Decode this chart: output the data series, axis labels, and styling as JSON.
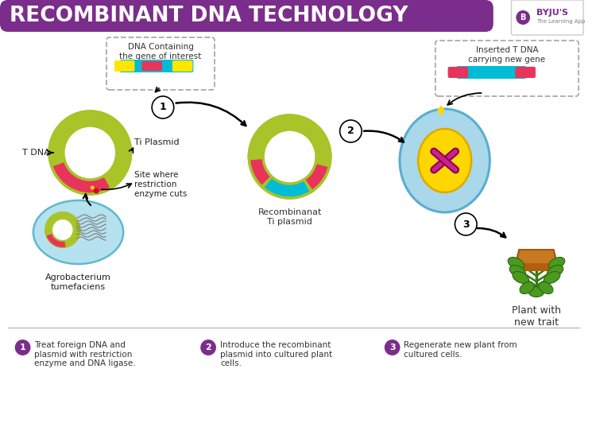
{
  "title": "RECOMBINANT DNA TECHNOLOGY",
  "title_bg": "#7B2D8B",
  "title_color": "#FFFFFF",
  "bg_color": "#FFFFFF",
  "purple": "#7B2D8B",
  "lime_green": "#A8C428",
  "light_yellow": "#FFFFCC",
  "cyan_light": "#A8D8EA",
  "hot_pink": "#E8345A",
  "cyan_gene": "#00BCD4",
  "yellow_gene": "#FFE600",
  "gold_yellow": "#FFD700",
  "footer1": "Treat foreign DNA and\nplasmid with restriction\nenzyme and DNA ligase.",
  "footer2": "Introduce the recombinant\nplasmid into cultured plant\ncells.",
  "footer3": "Regenerate new plant from\ncultured cells."
}
